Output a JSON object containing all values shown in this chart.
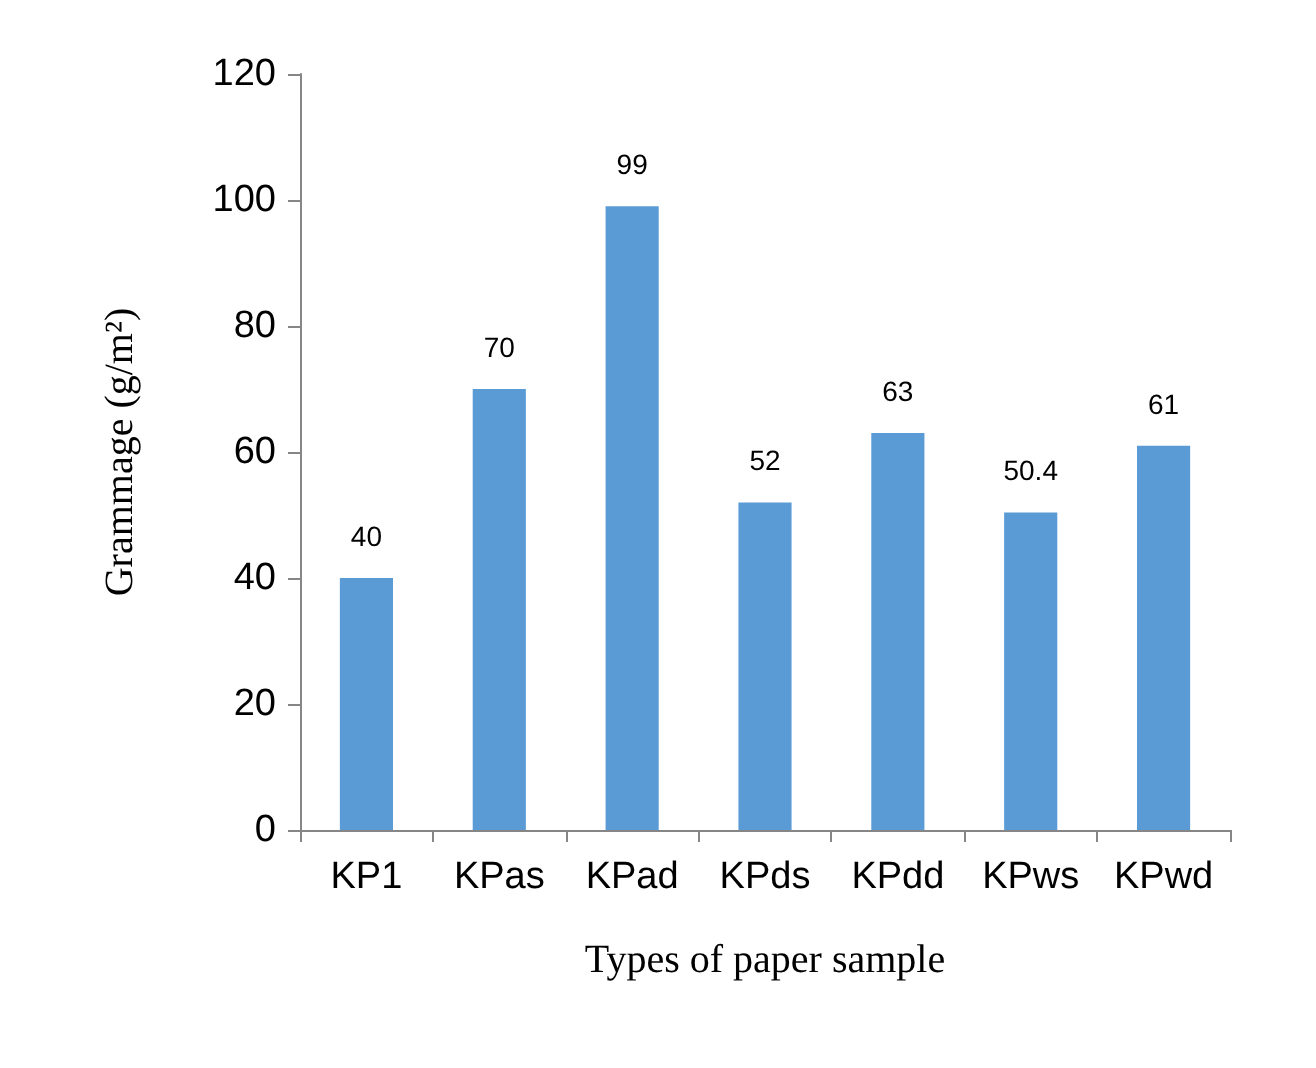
{
  "chart_data": {
    "type": "bar",
    "xlabel": "Types of paper sample",
    "ylabel": "Grammage (g/m²)",
    "categories": [
      "KP1",
      "KPas",
      "KPad",
      "KPds",
      "KPdd",
      "KPws",
      "KPwd"
    ],
    "values": [
      40,
      70,
      99,
      52,
      63,
      50.4,
      61
    ],
    "color": "#5b9bd5",
    "ylim": [
      0,
      120
    ],
    "yticks": [
      0,
      20,
      40,
      60,
      80,
      100,
      120
    ],
    "grid": false,
    "data_labels": true
  }
}
